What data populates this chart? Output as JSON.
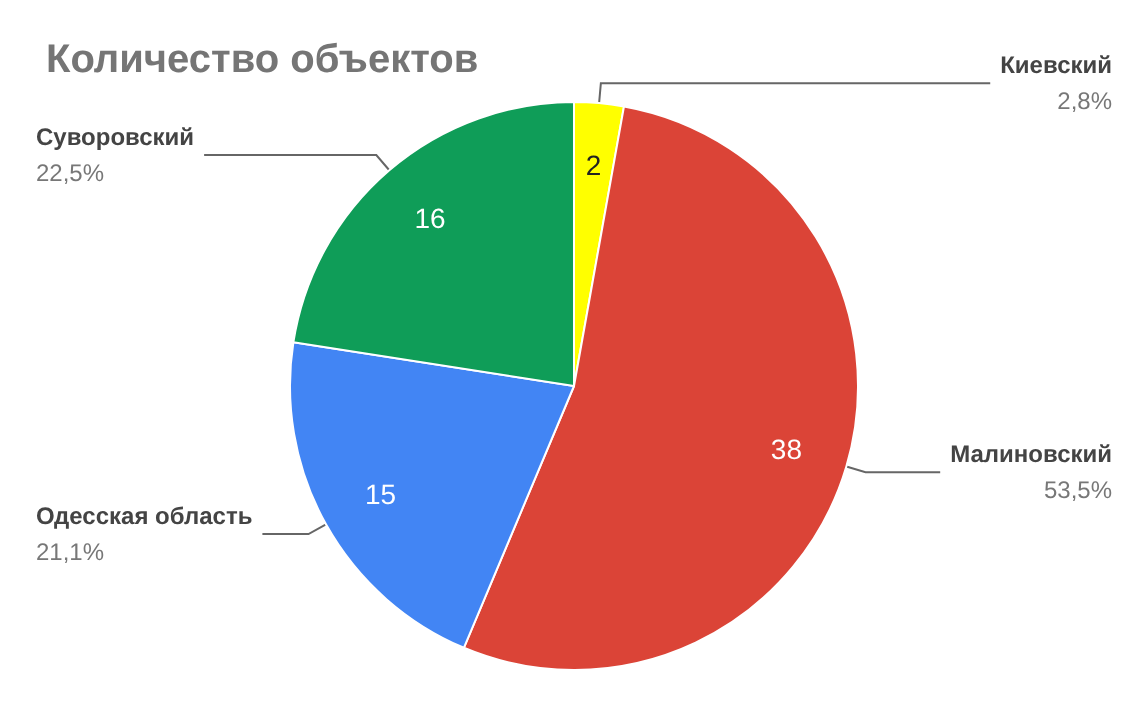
{
  "chart_data": {
    "type": "pie",
    "title": "Количество объектов",
    "categories": [
      "Киевский",
      "Малиновский",
      "Одесская область",
      "Суворовский"
    ],
    "values": [
      2,
      38,
      15,
      16
    ],
    "colors": [
      "#ffff00",
      "#db4437",
      "#4285f4",
      "#0f9d58"
    ],
    "data_labels": true,
    "annotations": [
      "2,8%",
      "53,5%",
      "21,1%",
      "22,5%"
    ],
    "legend": false
  }
}
